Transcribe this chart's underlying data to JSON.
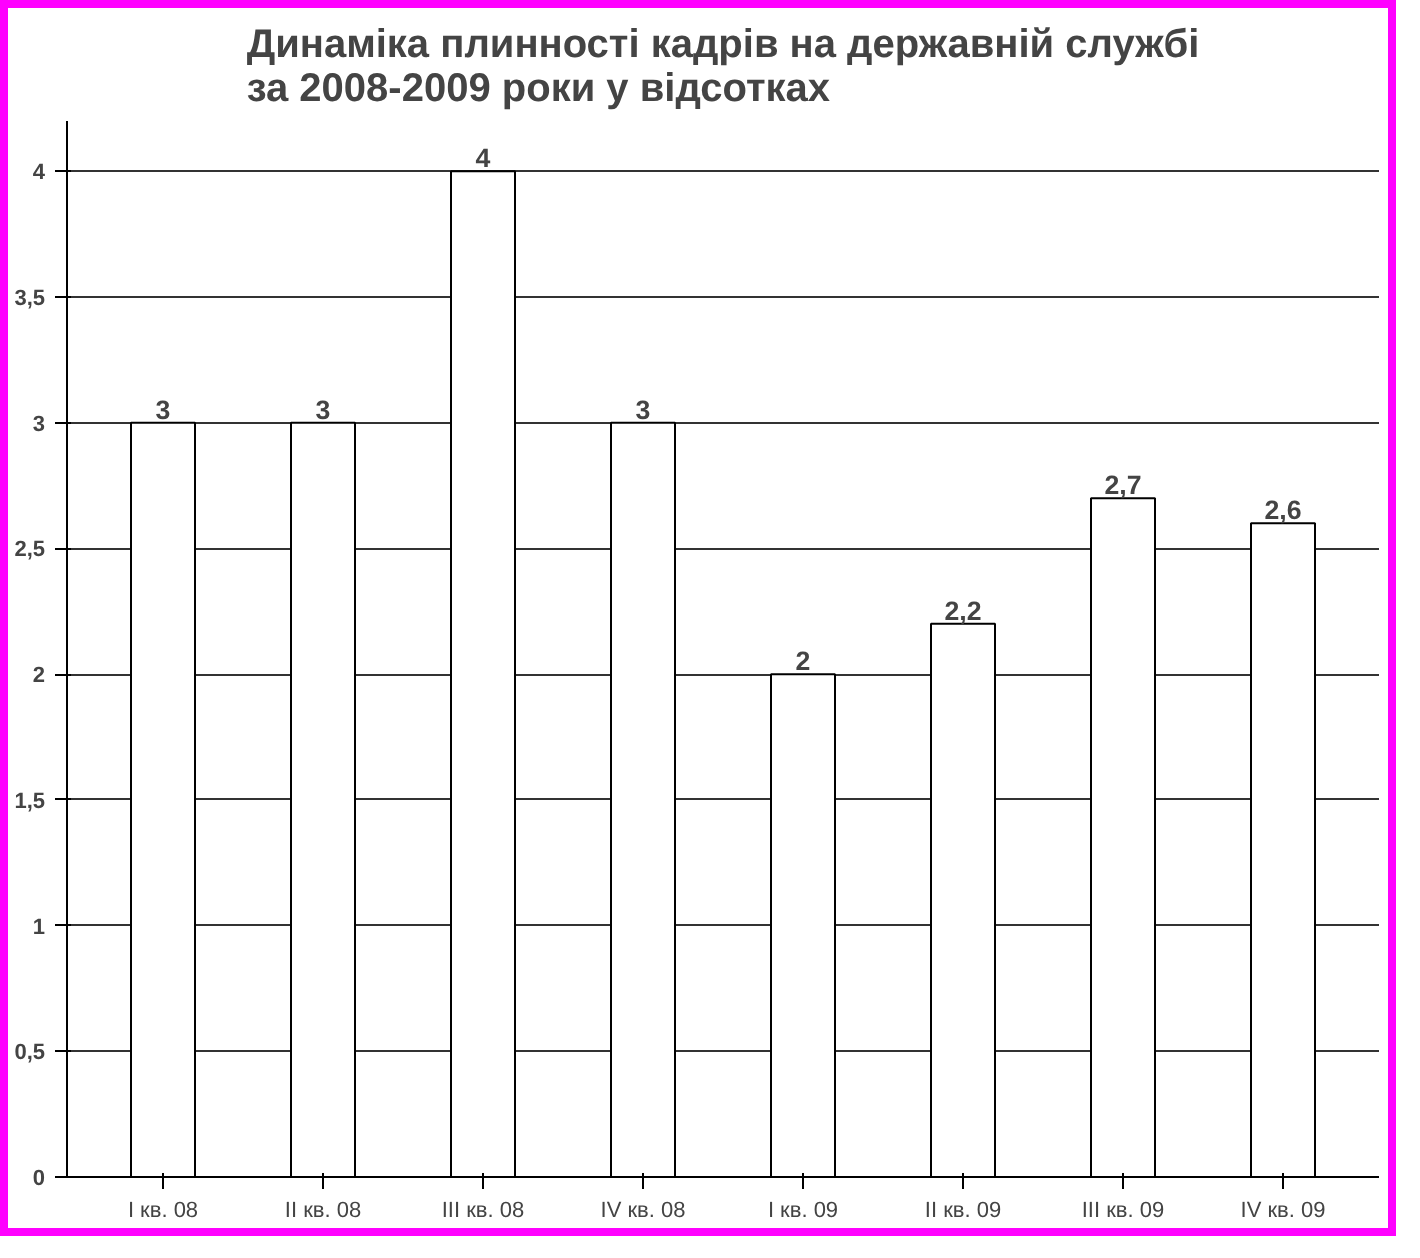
{
  "chart_data": {
    "type": "bar",
    "title": "Динаміка плинності кадрів на державній службі\nза 2008-2009 роки у відсотках",
    "categories": [
      "I кв. 08",
      "II кв. 08",
      "III кв. 08",
      "IV кв. 08",
      "I кв. 09",
      "II кв. 09",
      "III кв. 09",
      "IV кв. 09"
    ],
    "values": [
      3,
      3,
      4,
      3,
      2,
      2.2,
      2.7,
      2.6
    ],
    "color": "#ffffff",
    "ylim": [
      0,
      4.2
    ],
    "yticks": [
      0,
      {
        "value": 0.5,
        "label": "0,5"
      },
      1,
      {
        "value": 1.5,
        "label": "1,5"
      },
      2,
      {
        "value": 2.5,
        "label": "2,5"
      },
      3,
      {
        "value": 3.5,
        "label": "3,5"
      },
      4
    ],
    "value_labels": [
      "3",
      "3",
      "4",
      "3",
      "2",
      "2,2",
      "2,7",
      "2,6"
    ],
    "grid": "y"
  }
}
